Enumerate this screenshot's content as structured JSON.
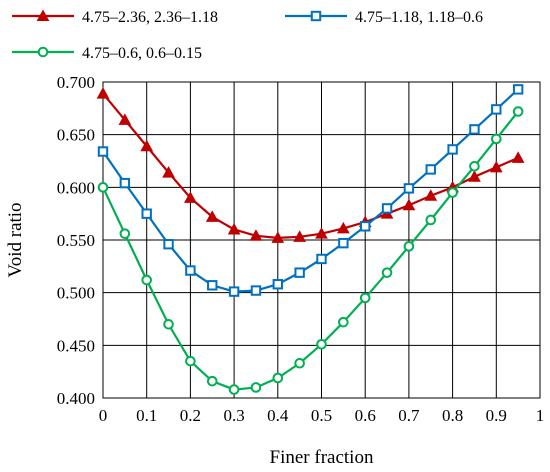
{
  "chart_data": {
    "type": "line",
    "title": "",
    "xlabel": "Finer fraction",
    "ylabel": "Void ratio",
    "xlim": [
      0,
      1
    ],
    "ylim": [
      0.4,
      0.7
    ],
    "grid": true,
    "legend_position": "top",
    "x_ticks": [
      "0",
      "0.1",
      "0.2",
      "0.3",
      "0.4",
      "0.5",
      "0.6",
      "0.7",
      "0.8",
      "0.9",
      "1"
    ],
    "y_ticks": [
      "0.400",
      "0.450",
      "0.500",
      "0.550",
      "0.600",
      "0.650",
      "0.700"
    ],
    "x": [
      0,
      0.05,
      0.1,
      0.15,
      0.2,
      0.25,
      0.3,
      0.35,
      0.4,
      0.45,
      0.5,
      0.55,
      0.6,
      0.65,
      0.7,
      0.75,
      0.8,
      0.85,
      0.9,
      0.95
    ],
    "series": [
      {
        "name": "4.75–2.36, 2.36–1.18",
        "color": "#c00000",
        "marker": "triangle",
        "values": [
          0.689,
          0.664,
          0.639,
          0.614,
          0.59,
          0.572,
          0.56,
          0.554,
          0.552,
          0.553,
          0.556,
          0.561,
          0.567,
          0.575,
          0.583,
          0.592,
          0.6,
          0.61,
          0.619,
          0.628
        ]
      },
      {
        "name": "4.75–1.18, 1.18–0.6",
        "color": "#0070c0",
        "marker": "square",
        "values": [
          0.634,
          0.604,
          0.575,
          0.546,
          0.521,
          0.507,
          0.501,
          0.502,
          0.508,
          0.519,
          0.532,
          0.547,
          0.563,
          0.58,
          0.599,
          0.617,
          0.636,
          0.655,
          0.674,
          0.693
        ]
      },
      {
        "name": "4.75–0.6, 0.6–0.15",
        "color": "#00b050",
        "marker": "circle",
        "values": [
          0.6,
          0.556,
          0.512,
          0.47,
          0.435,
          0.416,
          0.408,
          0.41,
          0.419,
          0.433,
          0.451,
          0.472,
          0.495,
          0.519,
          0.544,
          0.569,
          0.595,
          0.62,
          0.646,
          0.672
        ]
      }
    ]
  }
}
